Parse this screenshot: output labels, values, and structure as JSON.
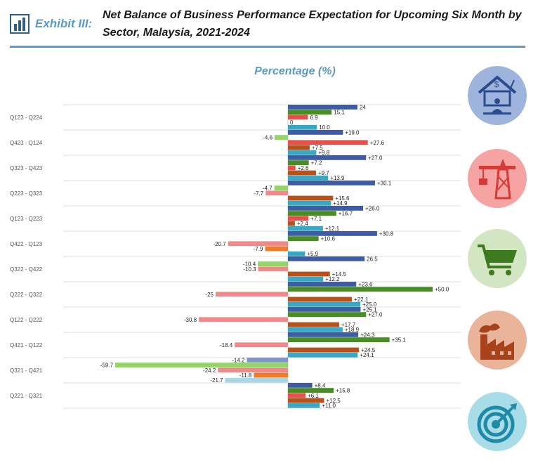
{
  "header": {
    "exhibit_label": "Exhibit  III:",
    "title": "Net Balance of Business Performance Expectation for Upcoming Six Month by Sector, Malaysia, 2021-2024"
  },
  "colors": {
    "accent": "#5b9bc9",
    "series": [
      "#3d5ca8",
      "#4a8c2a",
      "#e8504a",
      "#b8521a",
      "#3aa8c4",
      "#f08a8a",
      "#94d46a",
      "#7b96c8",
      "#f07c28",
      "#a8d8e8"
    ]
  },
  "sector_icons": [
    "services-house-icon",
    "construction-crane-icon",
    "shopping-cart-icon",
    "factory-icon",
    "target-icon"
  ],
  "chart_data": {
    "type": "bar",
    "orientation": "horizontal",
    "subtitle": "Percentage (%)",
    "xlim": [
      -80,
      50
    ],
    "grid": true,
    "legend": "none",
    "categories": [
      {
        "label": "Q123  -  Q224",
        "bars": [
          {
            "value": 24,
            "label": "24",
            "color": "#3d5ca8"
          },
          {
            "value": 15.1,
            "label": "15.1",
            "color": "#4a8c2a"
          },
          {
            "value": 6.9,
            "label": "6.9",
            "color": "#e8504a"
          },
          {
            "value": 0,
            "label": "0",
            "color": "#b8521a"
          },
          {
            "value": 10.0,
            "label": "10.0",
            "color": "#3aa8c4"
          }
        ]
      },
      {
        "label": "Q423  -  Q124",
        "bars": [
          {
            "value": 19.0,
            "label": "+19.0",
            "color": "#3d5ca8"
          },
          {
            "value": -4.6,
            "label": "-4.6",
            "color": "#94d46a"
          },
          {
            "value": 27.6,
            "label": "+27.6",
            "color": "#e8504a"
          },
          {
            "value": 7.5,
            "label": "+7.5",
            "color": "#b8521a"
          },
          {
            "value": 9.8,
            "label": "+9.8",
            "color": "#3aa8c4"
          }
        ]
      },
      {
        "label": "Q323  -  Q423",
        "bars": [
          {
            "value": 27.0,
            "label": "+27.0",
            "color": "#3d5ca8"
          },
          {
            "value": 7.2,
            "label": "+7.2",
            "color": "#4a8c2a"
          },
          {
            "value": 2.6,
            "label": "+2.6",
            "color": "#e8504a"
          },
          {
            "value": 9.7,
            "label": "+9.7",
            "color": "#b8521a"
          },
          {
            "value": 13.9,
            "label": "+13.9",
            "color": "#3aa8c4"
          }
        ]
      },
      {
        "label": "Q223  -  Q323",
        "bars": [
          {
            "value": 30.1,
            "label": "+30.1",
            "color": "#3d5ca8"
          },
          {
            "value": -4.7,
            "label": "-4.7",
            "color": "#94d46a"
          },
          {
            "value": -7.7,
            "label": "-7.7",
            "color": "#f08a8a"
          },
          {
            "value": 15.6,
            "label": "+15.6",
            "color": "#b8521a"
          },
          {
            "value": 14.9,
            "label": "+14.9",
            "color": "#3aa8c4"
          }
        ]
      },
      {
        "label": "Q123  -  Q223",
        "bars": [
          {
            "value": 26.0,
            "label": "+26.0",
            "color": "#3d5ca8"
          },
          {
            "value": 16.7,
            "label": "+16.7",
            "color": "#4a8c2a"
          },
          {
            "value": 7.1,
            "label": "+7.1",
            "color": "#e8504a"
          },
          {
            "value": 2.4,
            "label": "+2.4",
            "color": "#b8521a"
          },
          {
            "value": 12.1,
            "label": "+12.1",
            "color": "#3aa8c4"
          }
        ]
      },
      {
        "label": "Q422  -  Q123",
        "bars": [
          {
            "value": 30.8,
            "label": "+30.8",
            "color": "#3d5ca8"
          },
          {
            "value": 10.6,
            "label": "+10.6",
            "color": "#4a8c2a"
          },
          {
            "value": -20.7,
            "label": "-20.7",
            "color": "#f08a8a"
          },
          {
            "value": -7.9,
            "label": "-7.9",
            "color": "#f07c28"
          },
          {
            "value": 5.9,
            "label": "+5.9",
            "color": "#3aa8c4"
          }
        ]
      },
      {
        "label": "Q322  -  Q422",
        "bars": [
          {
            "value": 26.5,
            "label": "26.5",
            "color": "#3d5ca8"
          },
          {
            "value": -10.4,
            "label": "-10.4",
            "color": "#94d46a"
          },
          {
            "value": -10.3,
            "label": "-10.3",
            "color": "#f08a8a"
          },
          {
            "value": 14.5,
            "label": "+14.5",
            "color": "#b8521a"
          },
          {
            "value": 12.2,
            "label": "+12.2",
            "color": "#3aa8c4"
          }
        ]
      },
      {
        "label": "Q222  -  Q322",
        "bars": [
          {
            "value": 23.6,
            "label": "+23.6",
            "color": "#3d5ca8"
          },
          {
            "value": 50.0,
            "label": "+50.0",
            "color": "#4a8c2a"
          },
          {
            "value": -25,
            "label": "-25",
            "color": "#f08a8a"
          },
          {
            "value": 22.1,
            "label": "+22.1",
            "color": "#b8521a"
          },
          {
            "value": 25.0,
            "label": "+25.0",
            "color": "#3aa8c4"
          }
        ]
      },
      {
        "label": "Q122  -  Q222",
        "bars": [
          {
            "value": 25.1,
            "label": "+25.1",
            "color": "#3d5ca8"
          },
          {
            "value": 27.0,
            "label": "+27.0",
            "color": "#4a8c2a"
          },
          {
            "value": -30.8,
            "label": "-30.8",
            "color": "#f08a8a"
          },
          {
            "value": 17.7,
            "label": "+17.7",
            "color": "#b8521a"
          },
          {
            "value": 18.9,
            "label": "+18.9",
            "color": "#3aa8c4"
          }
        ]
      },
      {
        "label": "Q421  -  Q122",
        "bars": [
          {
            "value": 24.3,
            "label": "+24.3",
            "color": "#3d5ca8"
          },
          {
            "value": 35.1,
            "label": "+35.1",
            "color": "#4a8c2a"
          },
          {
            "value": -18.4,
            "label": "-18.4",
            "color": "#f08a8a"
          },
          {
            "value": 24.5,
            "label": "+24.5",
            "color": "#b8521a"
          },
          {
            "value": 24.1,
            "label": "+24.1",
            "color": "#3aa8c4"
          }
        ]
      },
      {
        "label": "Q321  -  Q421",
        "bars": [
          {
            "value": -14.2,
            "label": "-14.2",
            "color": "#7b96c8"
          },
          {
            "value": -59.7,
            "label": "-59.7",
            "color": "#94d46a"
          },
          {
            "value": -24.2,
            "label": "-24.2",
            "color": "#f08a8a"
          },
          {
            "value": -11.8,
            "label": "-11.8",
            "color": "#f07c28"
          },
          {
            "value": -21.7,
            "label": "-21.7",
            "color": "#a8d8e8"
          }
        ]
      },
      {
        "label": "Q221  -  Q321",
        "bars": [
          {
            "value": 8.4,
            "label": "+8.4",
            "color": "#3d5ca8"
          },
          {
            "value": 15.8,
            "label": "+15.8",
            "color": "#4a8c2a"
          },
          {
            "value": 6.1,
            "label": "+6.1",
            "color": "#e8504a"
          },
          {
            "value": 12.5,
            "label": "+12.5",
            "color": "#b8521a"
          },
          {
            "value": 11.0,
            "label": "+11.0",
            "color": "#3aa8c4"
          }
        ]
      }
    ]
  }
}
